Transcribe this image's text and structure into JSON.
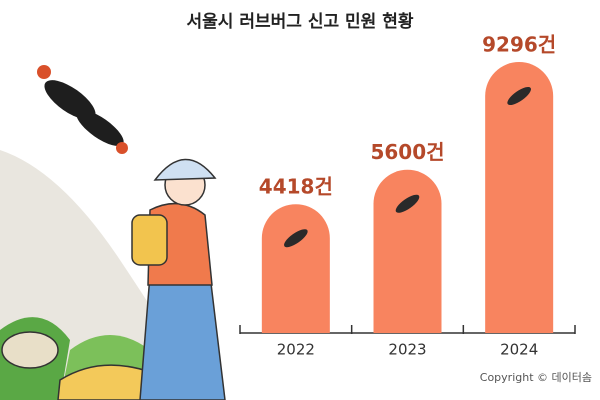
{
  "chart_data": {
    "type": "bar",
    "title": "서울시 러브버그 신고 민원 현황",
    "categories": [
      "2022",
      "2023",
      "2024"
    ],
    "values": [
      4418,
      5600,
      9296
    ],
    "value_labels": [
      "4418건",
      "5600건",
      "9296건"
    ],
    "color": "#f8845f"
  },
  "footer": {
    "copyright": "Copyright © 데이터솜"
  }
}
